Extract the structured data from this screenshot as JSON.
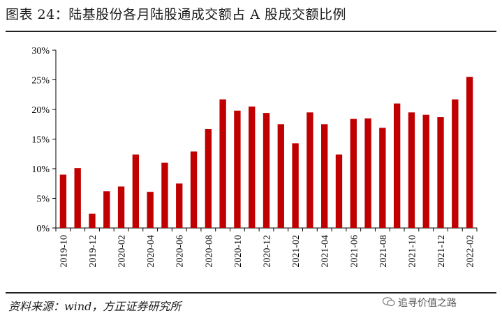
{
  "title": "图表 24：陆基股份各月陆股通成交额占 A 股成交额比例",
  "source": "资料来源：wind，方正证券研究所",
  "watermark": "追寻价值之路",
  "chart_data": {
    "type": "bar",
    "categories": [
      "2019-10",
      "2019-11",
      "2019-12",
      "2020-01",
      "2020-02",
      "2020-03",
      "2020-04",
      "2020-05",
      "2020-06",
      "2020-07",
      "2020-08",
      "2020-09",
      "2020-10",
      "2020-11",
      "2020-12",
      "2021-01",
      "2021-02",
      "2021-03",
      "2021-04",
      "2021-05",
      "2021-06",
      "2021-07",
      "2021-08",
      "2021-09",
      "2021-10",
      "2021-11",
      "2021-12",
      "2022-01",
      "2022-02"
    ],
    "tick_labels": [
      "2019-10",
      "2019-12",
      "2020-02",
      "2020-04",
      "2020-06",
      "2020-08",
      "2020-10",
      "2020-12",
      "2021-02",
      "2021-04",
      "2021-06",
      "2021-08",
      "2021-10",
      "2021-12",
      "2022-02"
    ],
    "values": [
      9.0,
      10.1,
      2.4,
      6.2,
      7.0,
      12.4,
      6.1,
      11.0,
      7.5,
      12.9,
      16.7,
      21.7,
      19.8,
      20.5,
      19.4,
      17.5,
      14.3,
      19.5,
      17.5,
      12.4,
      18.4,
      18.5,
      16.9,
      21.0,
      19.5,
      19.1,
      18.7,
      21.7,
      25.5
    ],
    "ylim": [
      0,
      30
    ],
    "yticks": [
      0,
      5,
      10,
      15,
      20,
      25,
      30
    ],
    "ytick_labels": [
      "0%",
      "5%",
      "10%",
      "15%",
      "20%",
      "25%",
      "30%"
    ],
    "color": "#c00000",
    "grid": false,
    "legend": "none"
  }
}
